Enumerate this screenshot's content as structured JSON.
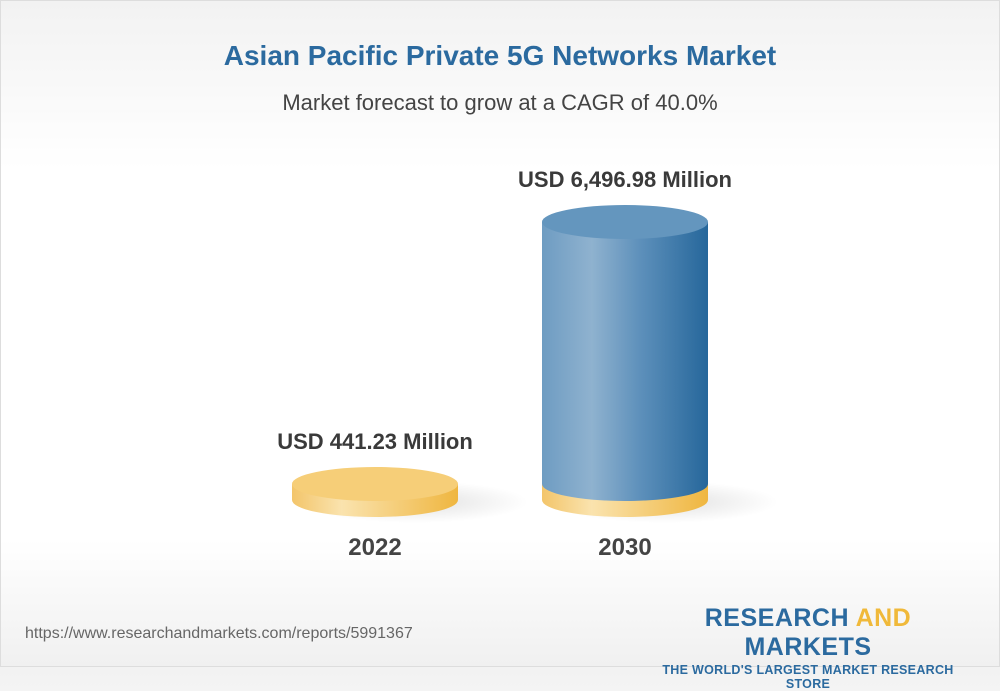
{
  "title": "Asian Pacific Private 5G Networks Market",
  "subtitle": "Market forecast to grow at a CAGR of 40.0%",
  "chart_data": {
    "type": "bar",
    "style": "3d-cylinder",
    "categories": [
      "2022",
      "2030"
    ],
    "values": [
      441.23,
      6496.98
    ],
    "unit": "USD Million",
    "data_labels": [
      "USD 441.23 Million",
      "USD 6,496.98 Million"
    ],
    "colors": {
      "base": "#f5cb70",
      "bar": "#4f86b5"
    }
  },
  "footer": {
    "url": "https://www.researchandmarkets.com/reports/5991367",
    "logo_part1": "RESEARCH ",
    "logo_part2": "AND",
    "logo_part3": " MARKETS",
    "logo_tagline": "THE WORLD'S LARGEST MARKET RESEARCH STORE"
  }
}
